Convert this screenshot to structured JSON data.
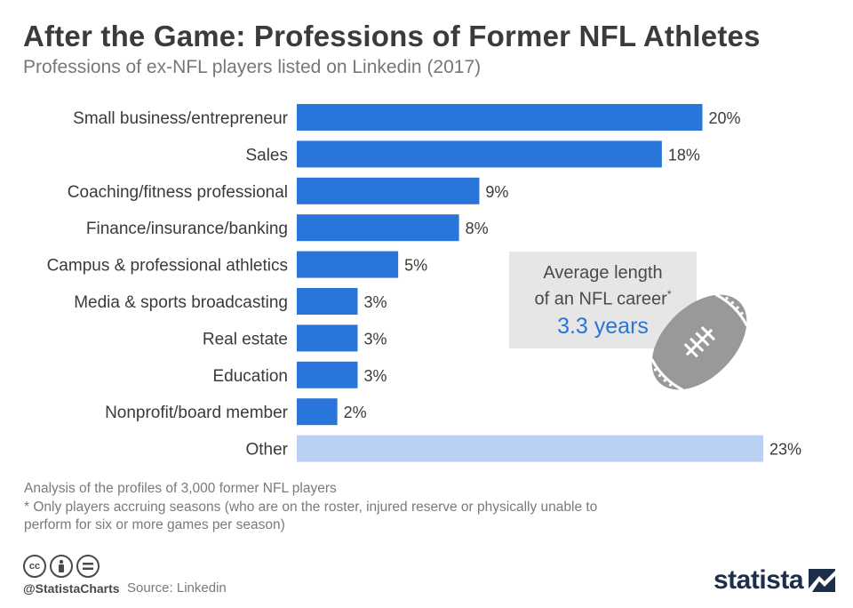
{
  "header": {
    "title": "After the Game: Professions of Former NFL Athletes",
    "subtitle": "Professions of ex-NFL players listed on Linkedin (2017)"
  },
  "chart_data": {
    "type": "bar",
    "orientation": "horizontal",
    "categories": [
      "Small business/entrepreneur",
      "Sales",
      "Coaching/fitness professional",
      "Finance/insurance/banking",
      "Campus & professional athletics",
      "Media & sports broadcasting",
      "Real estate",
      "Education",
      "Nonprofit/board member",
      "Other"
    ],
    "values": [
      20,
      18,
      9,
      8,
      5,
      3,
      3,
      3,
      2,
      23
    ],
    "value_labels": [
      "20%",
      "18%",
      "9%",
      "8%",
      "5%",
      "3%",
      "3%",
      "3%",
      "2%",
      "23%"
    ],
    "unit": "%",
    "xlim": [
      0,
      23
    ],
    "grid": false,
    "colors": {
      "bar": "#2a75d9",
      "highlight_bar": "#b9d0f2"
    },
    "highlight_category": "Other"
  },
  "callout": {
    "line1": "Average length",
    "line2": "of an NFL career",
    "marker": "*",
    "value": "3.3 years",
    "icon": "football-icon",
    "background": "#e6e6e6",
    "value_color": "#2a75d9"
  },
  "notes": {
    "analysis": "Analysis of the profiles of 3,000 former NFL players",
    "footnote": "* Only players accruing seasons (who are on the roster, injured reserve or physically unable to perform for six or more games per season)"
  },
  "footer": {
    "license_icons": [
      "cc-icon",
      "by-icon",
      "nd-icon"
    ],
    "handle": "@StatistaCharts",
    "source": "Source: Linkedin",
    "brand": "statista",
    "brand_icon": "statista-logo-icon"
  }
}
